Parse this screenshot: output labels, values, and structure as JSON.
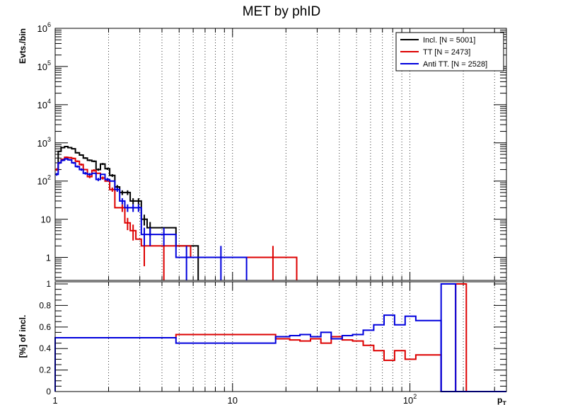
{
  "title": "MET by phID",
  "chart_data": [
    {
      "type": "line",
      "panel": "top",
      "title": "MET by phID",
      "ylabel": "Evts./bin",
      "yscale": "log",
      "ylim": [
        0.25,
        1000000
      ],
      "y_ticks": [
        {
          "value": 1,
          "base": "1",
          "exp": ""
        },
        {
          "value": 10,
          "base": "10",
          "exp": ""
        },
        {
          "value": 100,
          "base": "10",
          "exp": "2"
        },
        {
          "value": 1000,
          "base": "10",
          "exp": "3"
        },
        {
          "value": 10000,
          "base": "10",
          "exp": "4"
        },
        {
          "value": 100000,
          "base": "10",
          "exp": "5"
        },
        {
          "value": 1000000,
          "base": "10",
          "exp": "6"
        }
      ],
      "grid": "x",
      "legend": "top-right",
      "series": [
        {
          "name": "Incl. [N = 5001]",
          "color": "#000000",
          "steps": [
            [
              1.0,
              1.04,
              200
            ],
            [
              1.04,
              1.08,
              600
            ],
            [
              1.08,
              1.13,
              750
            ],
            [
              1.13,
              1.18,
              800
            ],
            [
              1.18,
              1.24,
              750
            ],
            [
              1.24,
              1.3,
              700
            ],
            [
              1.3,
              1.37,
              550
            ],
            [
              1.37,
              1.44,
              480
            ],
            [
              1.44,
              1.52,
              400
            ],
            [
              1.52,
              1.61,
              350
            ],
            [
              1.61,
              1.7,
              330
            ],
            [
              1.7,
              1.8,
              200
            ],
            [
              1.8,
              1.91,
              280
            ],
            [
              1.91,
              2.03,
              210
            ],
            [
              2.03,
              2.17,
              140
            ],
            [
              2.17,
              2.31,
              70
            ],
            [
              2.31,
              2.47,
              50
            ],
            [
              2.47,
              2.65,
              50
            ],
            [
              2.65,
              2.85,
              30
            ],
            [
              2.85,
              3.06,
              30
            ],
            [
              3.06,
              3.3,
              10
            ],
            [
              3.3,
              3.56,
              6
            ],
            [
              3.56,
              4.8,
              6
            ],
            [
              4.8,
              6.4,
              2
            ]
          ],
          "markers": [
            [
              1.02,
              200
            ],
            [
              1.06,
              600
            ],
            [
              1.105,
              750
            ],
            [
              1.155,
              800
            ],
            [
              1.21,
              750
            ],
            [
              1.27,
              700
            ],
            [
              1.335,
              550
            ],
            [
              1.405,
              480
            ],
            [
              1.48,
              400
            ],
            [
              1.565,
              350
            ],
            [
              1.655,
              330
            ],
            [
              1.75,
              200
            ],
            [
              1.855,
              280
            ],
            [
              1.97,
              210
            ],
            [
              2.1,
              140
            ],
            [
              2.24,
              70
            ],
            [
              2.39,
              50
            ],
            [
              2.56,
              50
            ],
            [
              2.75,
              30
            ],
            [
              2.95,
              30
            ],
            [
              3.18,
              10
            ],
            [
              3.43,
              6
            ]
          ]
        },
        {
          "name": "TT [N = 2473]",
          "color": "#dd0000",
          "steps": [
            [
              1.0,
              1.04,
              200
            ],
            [
              1.04,
              1.08,
              300
            ],
            [
              1.08,
              1.13,
              370
            ],
            [
              1.13,
              1.18,
              420
            ],
            [
              1.18,
              1.24,
              410
            ],
            [
              1.24,
              1.3,
              390
            ],
            [
              1.3,
              1.37,
              330
            ],
            [
              1.37,
              1.44,
              270
            ],
            [
              1.44,
              1.52,
              200
            ],
            [
              1.52,
              1.61,
              130
            ],
            [
              1.61,
              1.7,
              190
            ],
            [
              1.7,
              1.8,
              160
            ],
            [
              1.8,
              1.91,
              120
            ],
            [
              1.91,
              2.03,
              100
            ],
            [
              2.03,
              2.17,
              60
            ],
            [
              2.17,
              2.31,
              20
            ],
            [
              2.31,
              2.47,
              20
            ],
            [
              2.47,
              2.65,
              8
            ],
            [
              2.65,
              2.85,
              5
            ],
            [
              2.85,
              3.06,
              3
            ],
            [
              3.06,
              3.3,
              2
            ],
            [
              3.3,
              4.8,
              2
            ],
            [
              4.8,
              5.8,
              2
            ],
            [
              5.8,
              12.5,
              1
            ],
            [
              12.5,
              23.0,
              1
            ]
          ],
          "markers": [
            [
              1.02,
              200
            ],
            [
              1.06,
              300
            ],
            [
              1.105,
              370
            ],
            [
              1.155,
              420
            ],
            [
              1.21,
              410
            ],
            [
              1.27,
              390
            ],
            [
              1.335,
              330
            ],
            [
              1.405,
              270
            ],
            [
              1.565,
              130
            ],
            [
              1.655,
              190
            ],
            [
              1.855,
              120
            ],
            [
              2.1,
              60
            ],
            [
              2.39,
              20
            ],
            [
              2.56,
              8
            ],
            [
              2.75,
              5
            ],
            [
              3.18,
              2
            ],
            [
              4.1,
              1
            ],
            [
              16.9,
              1
            ]
          ]
        },
        {
          "name": "Anti TT. [N = 2528]",
          "color": "#0000dd",
          "steps": [
            [
              1.0,
              1.04,
              150
            ],
            [
              1.04,
              1.08,
              300
            ],
            [
              1.08,
              1.13,
              350
            ],
            [
              1.13,
              1.18,
              380
            ],
            [
              1.18,
              1.24,
              360
            ],
            [
              1.24,
              1.3,
              300
            ],
            [
              1.3,
              1.37,
              240
            ],
            [
              1.37,
              1.44,
              200
            ],
            [
              1.44,
              1.52,
              160
            ],
            [
              1.52,
              1.61,
              150
            ],
            [
              1.61,
              1.7,
              160
            ],
            [
              1.7,
              1.8,
              110
            ],
            [
              1.8,
              1.91,
              150
            ],
            [
              1.91,
              2.03,
              110
            ],
            [
              2.03,
              2.17,
              100
            ],
            [
              2.17,
              2.31,
              60
            ],
            [
              2.31,
              2.47,
              30
            ],
            [
              2.47,
              2.65,
              20
            ],
            [
              2.65,
              2.85,
              20
            ],
            [
              2.85,
              3.06,
              20
            ],
            [
              3.06,
              3.3,
              4
            ],
            [
              3.3,
              3.56,
              4
            ],
            [
              3.56,
              4.8,
              4
            ],
            [
              4.8,
              6.4,
              1
            ],
            [
              6.4,
              12.0,
              1
            ]
          ],
          "markers": [
            [
              1.02,
              150
            ],
            [
              1.06,
              300
            ],
            [
              1.105,
              350
            ],
            [
              1.155,
              380
            ],
            [
              1.21,
              360
            ],
            [
              1.27,
              300
            ],
            [
              1.335,
              240
            ],
            [
              1.405,
              200
            ],
            [
              1.48,
              160
            ],
            [
              1.565,
              150
            ],
            [
              1.75,
              110
            ],
            [
              1.97,
              110
            ],
            [
              2.24,
              60
            ],
            [
              2.39,
              30
            ],
            [
              2.56,
              20
            ],
            [
              2.75,
              20
            ],
            [
              2.95,
              20
            ],
            [
              3.18,
              4
            ],
            [
              3.43,
              4
            ],
            [
              4.1,
              4
            ],
            [
              5.5,
              1
            ],
            [
              8.6,
              1
            ]
          ]
        }
      ]
    },
    {
      "type": "line",
      "panel": "bottom",
      "ylabel": "[%] of incl.",
      "xlabel": "p",
      "xlabel_sub": "T",
      "xscale": "log",
      "xlim": [
        1,
        350
      ],
      "ylim": [
        0,
        1.02
      ],
      "x_ticks": [
        {
          "value": 1,
          "base": "1",
          "exp": ""
        },
        {
          "value": 10,
          "base": "10",
          "exp": ""
        },
        {
          "value": 100,
          "base": "10",
          "exp": "2"
        }
      ],
      "y_ticks": [
        {
          "value": 0,
          "label": "0"
        },
        {
          "value": 0.2,
          "label": "0.2"
        },
        {
          "value": 0.4,
          "label": "0.4"
        },
        {
          "value": 0.6,
          "label": "0.6"
        },
        {
          "value": 0.8,
          "label": "0.8"
        },
        {
          "value": 1.0,
          "label": "1"
        }
      ],
      "grid": "x",
      "series": [
        {
          "name": "TT",
          "color": "#dd0000",
          "steps": [
            [
              1.0,
              4.8,
              0.5
            ],
            [
              4.8,
              17.5,
              0.53
            ],
            [
              17.5,
              21.0,
              0.49
            ],
            [
              21.0,
              24.0,
              0.48
            ],
            [
              24.0,
              27.5,
              0.47
            ],
            [
              27.5,
              31.5,
              0.49
            ],
            [
              31.5,
              36.0,
              0.45
            ],
            [
              36.0,
              41.5,
              0.51
            ],
            [
              41.5,
              47.5,
              0.48
            ],
            [
              47.5,
              54.5,
              0.47
            ],
            [
              54.5,
              62.5,
              0.43
            ],
            [
              62.5,
              71.5,
              0.38
            ],
            [
              71.5,
              82.0,
              0.29
            ],
            [
              82.0,
              94.0,
              0.38
            ],
            [
              94.0,
              108.0,
              0.3
            ],
            [
              108.0,
              124.0,
              0.34
            ],
            [
              124.0,
              150.0,
              0.34
            ],
            [
              150.0,
              250.0,
              0.0
            ],
            [
              250.0,
              350.0,
              0.0
            ]
          ],
          "peak": [
            181.0,
            208.0,
            1.0
          ]
        },
        {
          "name": "Anti TT.",
          "color": "#0000dd",
          "steps": [
            [
              1.0,
              4.8,
              0.5
            ],
            [
              4.8,
              17.5,
              0.45
            ],
            [
              17.5,
              21.0,
              0.51
            ],
            [
              21.0,
              24.0,
              0.52
            ],
            [
              24.0,
              27.5,
              0.53
            ],
            [
              27.5,
              31.5,
              0.51
            ],
            [
              31.5,
              36.0,
              0.55
            ],
            [
              36.0,
              41.5,
              0.49
            ],
            [
              41.5,
              47.5,
              0.52
            ],
            [
              47.5,
              54.5,
              0.53
            ],
            [
              54.5,
              62.5,
              0.57
            ],
            [
              62.5,
              71.5,
              0.62
            ],
            [
              71.5,
              82.0,
              0.71
            ],
            [
              82.0,
              94.0,
              0.62
            ],
            [
              94.0,
              108.0,
              0.7
            ],
            [
              108.0,
              124.0,
              0.66
            ],
            [
              124.0,
              150.0,
              0.66
            ],
            [
              150.0,
              350.0,
              0.0
            ]
          ],
          "peak": [
            150.0,
            181.0,
            1.0
          ]
        }
      ]
    }
  ]
}
